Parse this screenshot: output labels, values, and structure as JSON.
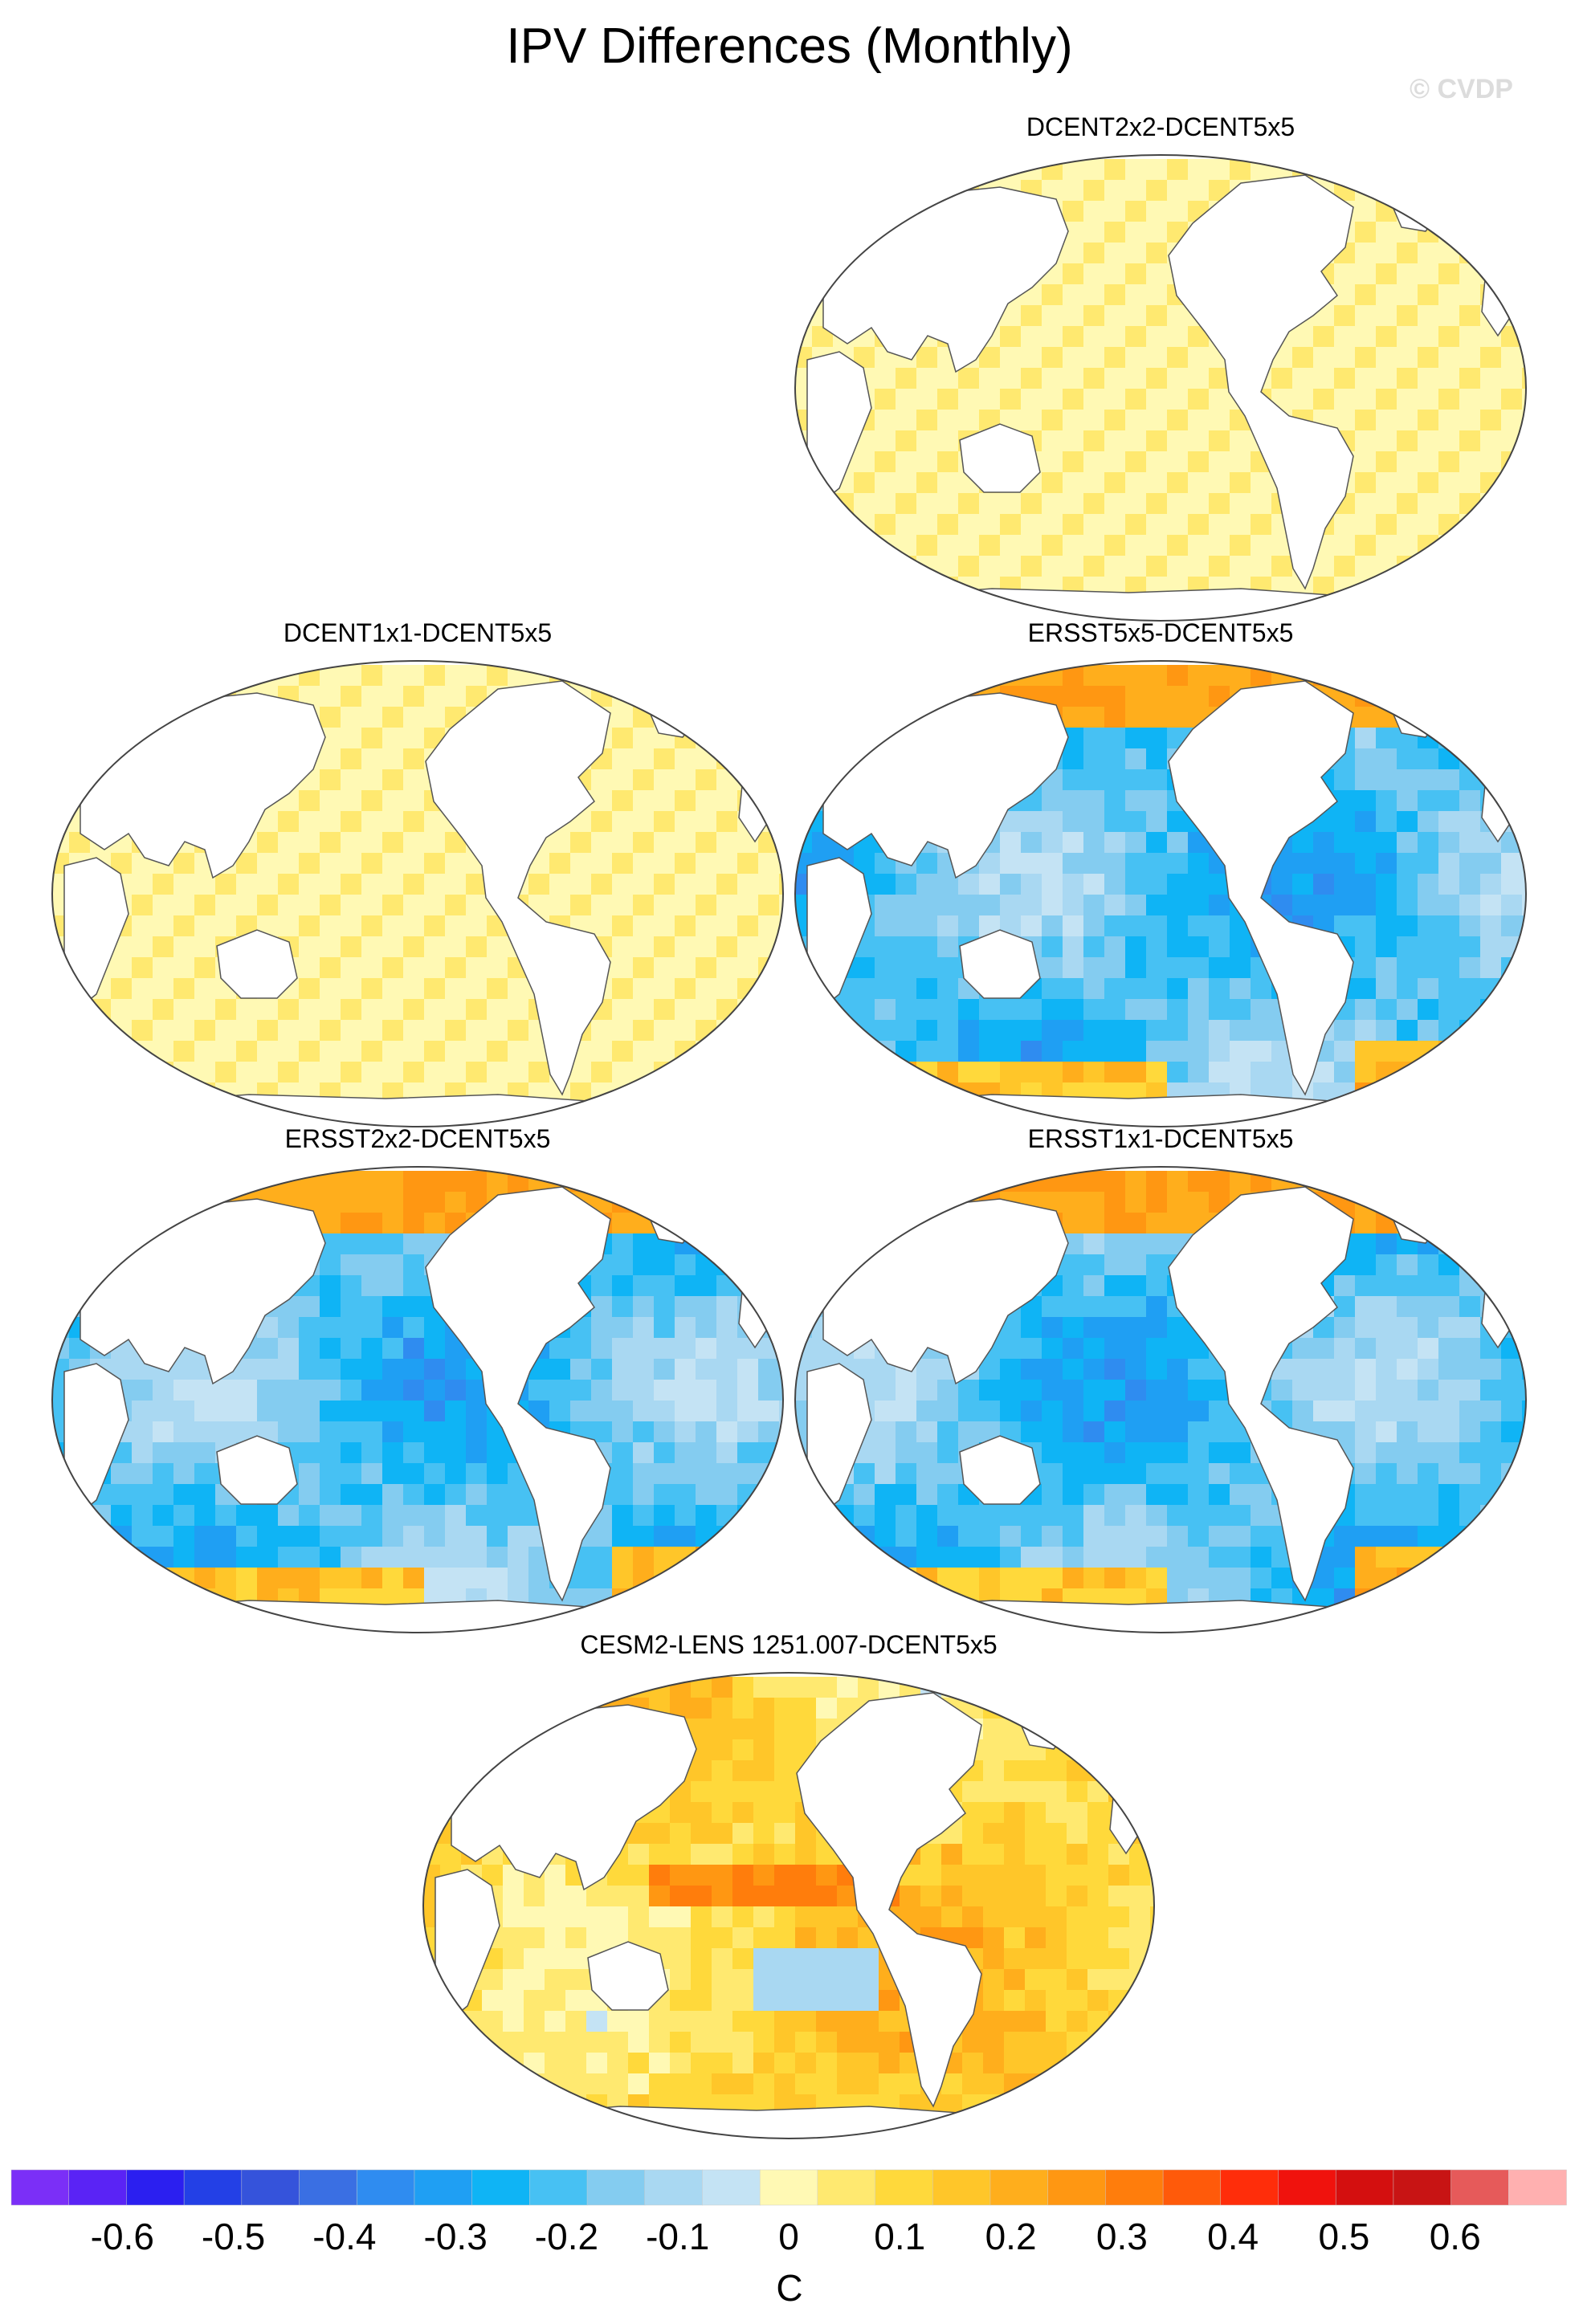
{
  "title": "IPV Differences (Monthly)",
  "watermark": "© CVDP",
  "chart_data": {
    "type": "heatmap",
    "title": "IPV Differences (Monthly)",
    "units": "C",
    "colorbar": {
      "tick_labels": [
        "-0.6",
        "-0.5",
        "-0.4",
        "-0.3",
        "-0.2",
        "-0.1",
        "0",
        "0.1",
        "0.2",
        "0.3",
        "0.4",
        "0.5",
        "0.6"
      ],
      "ticks": [
        -0.6,
        -0.5,
        -0.4,
        -0.3,
        -0.2,
        -0.1,
        0,
        0.1,
        0.2,
        0.3,
        0.4,
        0.5,
        0.6
      ],
      "range": [
        -0.7,
        0.7
      ],
      "step": 0.05,
      "colors": [
        "#7b2ff7",
        "#5a23f5",
        "#2b1ff0",
        "#2340e6",
        "#3553db",
        "#3a6fe3",
        "#2f8cf0",
        "#1f9ff3",
        "#0fb4f5",
        "#47c1f3",
        "#84ccf0",
        "#a9d8f2",
        "#c4e3f4",
        "#fff9b4",
        "#ffe970",
        "#ffd93b",
        "#ffc629",
        "#ffae1c",
        "#ff9712",
        "#ff7d0c",
        "#ff5a0a",
        "#ff2d0a",
        "#f0120d",
        "#d40f0f",
        "#c81414",
        "#e65a5a",
        "#ffb0b0"
      ]
    },
    "panels": [
      {
        "label": "DCENT2x2-DCENT5x5",
        "pattern": "stripes",
        "mean_diff": -0.02
      },
      {
        "label": "DCENT1x1-DCENT5x5",
        "pattern": "stripes",
        "mean_diff": -0.02
      },
      {
        "label": "ERSST5x5-DCENT5x5",
        "pattern": "cool",
        "mean_diff": -0.2
      },
      {
        "label": "ERSST2x2-DCENT5x5",
        "pattern": "cool",
        "mean_diff": -0.2
      },
      {
        "label": "ERSST1x1-DCENT5x5",
        "pattern": "cool",
        "mean_diff": -0.2
      },
      {
        "label": "CESM2-LENS 1251.007-DCENT5x5",
        "pattern": "warm",
        "mean_diff": 0.1
      }
    ]
  }
}
